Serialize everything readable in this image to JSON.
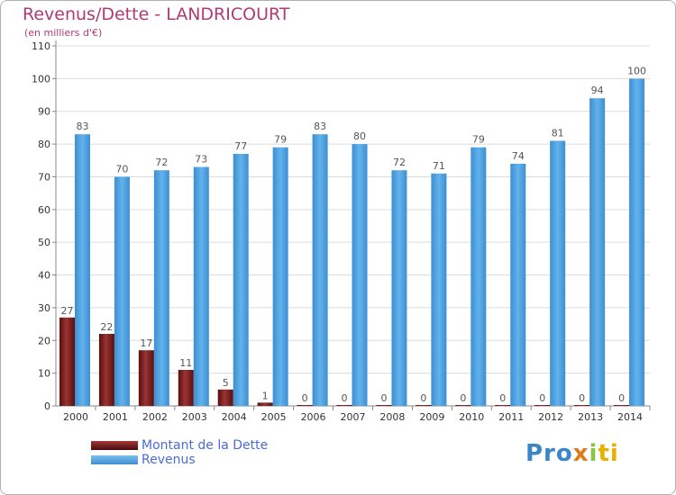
{
  "header": {
    "title": "Revenus/Dette - LANDRICOURT",
    "subtitle": "(en milliers d'€)"
  },
  "legend": {
    "dette_label": "Montant de la Dette",
    "revenus_label": "Revenus"
  },
  "logo": {
    "text": "Proxiti"
  },
  "colors": {
    "dette": "#7a1e1e",
    "revenus": "#4aa0e0",
    "title": "#b03a78",
    "legend_text": "#4a6bd8"
  },
  "chart_data": {
    "type": "bar",
    "title": "Revenus/Dette - LANDRICOURT",
    "subtitle": "(en milliers d'€)",
    "xlabel": "",
    "ylabel": "",
    "categories": [
      "2000",
      "2001",
      "2002",
      "2003",
      "2004",
      "2005",
      "2006",
      "2007",
      "2008",
      "2009",
      "2010",
      "2011",
      "2012",
      "2013",
      "2014"
    ],
    "series": [
      {
        "name": "Montant de la Dette",
        "values": [
          27,
          22,
          17,
          11,
          5,
          1,
          0,
          0,
          0,
          0,
          0,
          0,
          0,
          0,
          0
        ]
      },
      {
        "name": "Revenus",
        "values": [
          83,
          70,
          72,
          73,
          77,
          79,
          83,
          80,
          72,
          71,
          79,
          74,
          81,
          94,
          100
        ]
      }
    ],
    "ylim": [
      0,
      110
    ],
    "yticks": [
      0,
      10,
      20,
      30,
      40,
      50,
      60,
      70,
      80,
      90,
      100,
      110
    ],
    "grid": true,
    "legend_position": "bottom-left"
  }
}
